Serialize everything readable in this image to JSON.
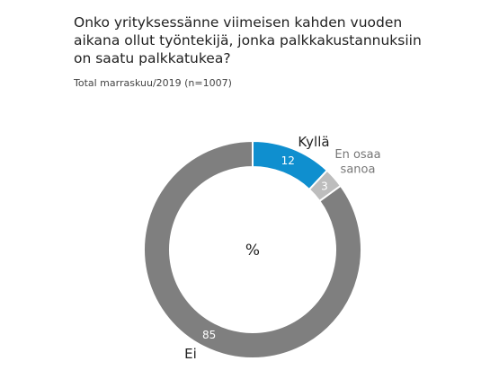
{
  "title_lines": [
    "Onko yrityksessänne viimeisen kahden vuoden",
    "aikana ollut työntekijä, jonka palkkakustannuksiin",
    "on saatu palkkatukea?"
  ],
  "subtitle": "Total marraskuu/2019 (n=1007)",
  "chart_data": {
    "type": "pie",
    "donut": true,
    "center_label": "%",
    "slices": [
      {
        "label": "Kyllä",
        "value": 12,
        "color": "#0f8fcf",
        "text_color": "#ffffff",
        "category_color": "#222222"
      },
      {
        "label": "En osaa\nsanoa",
        "value": 3,
        "color": "#bdbdbd",
        "text_color": "#ffffff",
        "category_color": "#777777"
      },
      {
        "label": "Ei",
        "value": 85,
        "color": "#7f7f7f",
        "text_color": "#ffffff",
        "category_color": "#222222"
      }
    ]
  }
}
